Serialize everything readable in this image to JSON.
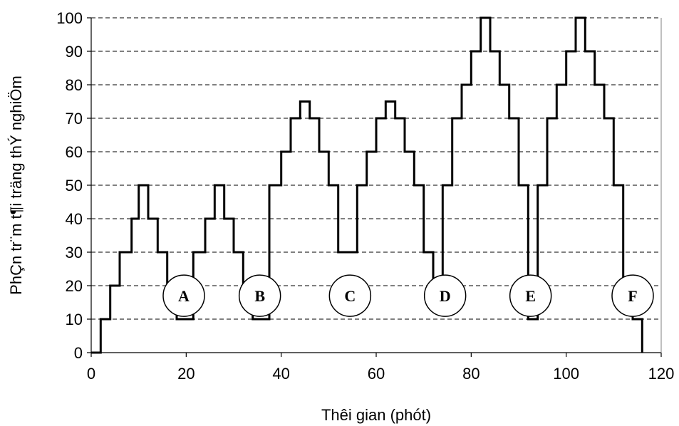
{
  "chart_data": {
    "type": "line",
    "line_style": "step",
    "xlabel": "Thêi gian (phót)",
    "ylabel": "PhÇn tr¨m t¶i träng thÝ nghiÖm",
    "xlim": [
      0,
      120
    ],
    "ylim": [
      0,
      100
    ],
    "x_ticks": [
      0,
      20,
      40,
      60,
      80,
      100,
      120
    ],
    "y_ticks": [
      0,
      10,
      20,
      30,
      40,
      50,
      60,
      70,
      80,
      90,
      100
    ],
    "grid": "horizontal-dashed",
    "series": [
      {
        "x": [
          0,
          2,
          2,
          4,
          4,
          6,
          6,
          8.5,
          8.5,
          10,
          10,
          12,
          12,
          14,
          14,
          16,
          16,
          18,
          18,
          21.5,
          21.5,
          24,
          24,
          26,
          26,
          28,
          28,
          30,
          30,
          32,
          32,
          34,
          34,
          37.5,
          37.5,
          40,
          40,
          42,
          42,
          44,
          44,
          46,
          46,
          48,
          48,
          50,
          50,
          52,
          52,
          56,
          56,
          58,
          58,
          60,
          60,
          62,
          62,
          64,
          64,
          66,
          66,
          68,
          68,
          70,
          70,
          72,
          72,
          74,
          74,
          76,
          76,
          78,
          78,
          80,
          80,
          82,
          82,
          84,
          84,
          86,
          86,
          88,
          88,
          90,
          90,
          92,
          92,
          94,
          94,
          96,
          96,
          98,
          98,
          100,
          100,
          102,
          102,
          104,
          104,
          106,
          106,
          108,
          108,
          110,
          110,
          112,
          112,
          114,
          114,
          116,
          116
        ],
        "y": [
          0,
          0,
          10,
          10,
          20,
          20,
          30,
          30,
          40,
          40,
          50,
          50,
          40,
          40,
          30,
          30,
          20,
          20,
          10,
          10,
          30,
          30,
          40,
          40,
          50,
          50,
          40,
          40,
          30,
          30,
          20,
          20,
          10,
          10,
          50,
          50,
          60,
          60,
          70,
          70,
          75,
          75,
          70,
          70,
          60,
          60,
          50,
          50,
          30,
          30,
          50,
          50,
          60,
          60,
          70,
          70,
          75,
          75,
          70,
          70,
          60,
          60,
          50,
          50,
          30,
          30,
          20,
          20,
          50,
          50,
          70,
          70,
          80,
          80,
          90,
          90,
          100,
          100,
          90,
          90,
          80,
          80,
          70,
          70,
          50,
          50,
          10,
          10,
          50,
          50,
          70,
          70,
          80,
          80,
          90,
          90,
          100,
          100,
          90,
          90,
          80,
          80,
          70,
          70,
          50,
          50,
          20,
          20,
          10,
          10,
          0
        ]
      }
    ],
    "annotations": [
      {
        "label": "A",
        "x": 19.5,
        "y": 17
      },
      {
        "label": "B",
        "x": 35.5,
        "y": 17
      },
      {
        "label": "C",
        "x": 54.5,
        "y": 17
      },
      {
        "label": "D",
        "x": 74.5,
        "y": 17
      },
      {
        "label": "E",
        "x": 92.5,
        "y": 17
      },
      {
        "label": "F",
        "x": 114,
        "y": 17
      }
    ]
  }
}
